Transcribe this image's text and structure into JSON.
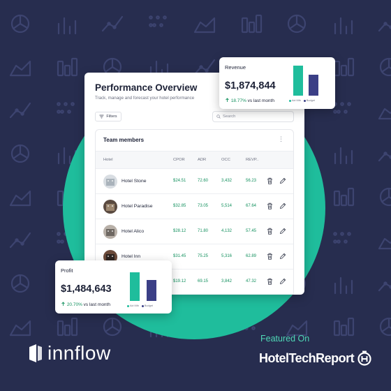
{
  "colors": {
    "background": "#272d4f",
    "accent_teal": "#1fbd9c",
    "bar_actual": "#1fbd9c",
    "bar_budget": "#3b3f86",
    "positive": "#14915f",
    "featured_text": "#4fd8b6"
  },
  "main": {
    "title": "Performance Overview",
    "subtitle": "Track, manage and forecast your hotel performance",
    "filters_label": "Filters",
    "search_placeholder": "Search",
    "table": {
      "title": "Team members",
      "columns": [
        "Hotel",
        "CPOR",
        "ADR",
        "OCC",
        "REVP.."
      ],
      "rows": [
        {
          "hotel": "Hotel Stone",
          "cpor": "$24.51",
          "adr": "72.60",
          "occ": "3,432",
          "revp": "56.23"
        },
        {
          "hotel": "Hotel Paradise",
          "cpor": "$32.85",
          "adr": "73.05",
          "occ": "5,514",
          "revp": "67.64"
        },
        {
          "hotel": "Hotel Alico",
          "cpor": "$28.12",
          "adr": "71.80",
          "occ": "4,132",
          "revp": "57.45"
        },
        {
          "hotel": "Hotel Inn",
          "cpor": "$31.45",
          "adr": "75.25",
          "occ": "5,316",
          "revp": "62.89"
        },
        {
          "hotel": "",
          "cpor": "$19.12",
          "adr": "69.15",
          "occ": "3,842",
          "revp": "47.32"
        }
      ]
    }
  },
  "revenue": {
    "label": "Revenue",
    "value": "$1,874,844",
    "change_pct": "18.77%",
    "change_text": "vs last month",
    "bars": {
      "act_mth": 1.0,
      "budget": 0.7
    },
    "legend": [
      "Act Mth",
      "Budget"
    ]
  },
  "profit": {
    "label": "Profit",
    "value": "$1,484,643",
    "change_pct": "20.70%",
    "change_text": "vs last month",
    "bars": {
      "act_mth": 1.0,
      "budget": 0.72
    },
    "legend": [
      "Act Mth",
      "Budget"
    ]
  },
  "footer": {
    "brand": "innflow",
    "featured": "Featured On",
    "partner": "HotelTechReport"
  }
}
